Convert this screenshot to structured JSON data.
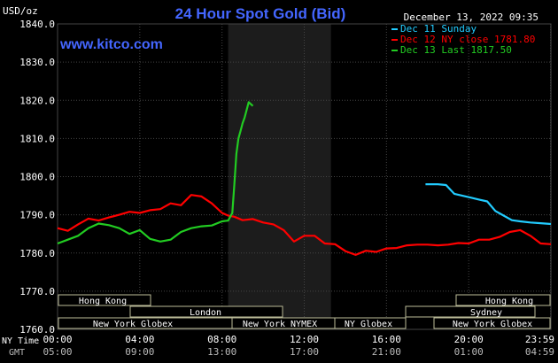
{
  "header": {
    "unit_label": "USD/oz",
    "title": "24 Hour Spot Gold (Bid)",
    "datetime": "December 13, 2022 09:35",
    "website": "www.kitco.com"
  },
  "legend": [
    {
      "label": "Dec 11 Sunday",
      "color": "#22ccff"
    },
    {
      "label": "Dec 12 NY close 1781.80",
      "color": "#ff0000"
    },
    {
      "label": "Dec 13 Last 1817.50",
      "color": "#22cc22"
    }
  ],
  "axis_rows": {
    "ny_time_label": "NY Time",
    "gmt_label": "GMT"
  },
  "markets": {
    "left": [
      "Hong Kong",
      "London",
      "New York Globex",
      "New York NYMEX",
      "NY Globex"
    ],
    "right": [
      "Hong Kong",
      "Sydney",
      "New York Globex"
    ]
  },
  "colors": {
    "background": "#000000",
    "plot_background": "#000000",
    "highlight_band": "#1c1c1c",
    "grid": "#444444",
    "title": "#4466ff",
    "text": "#ffffff",
    "box_fill": "#000000",
    "box_border": "#bbbb99",
    "axis_text": "#bbbbbb"
  },
  "chart_data": {
    "type": "line",
    "title": "24 Hour Spot Gold (Bid)",
    "ylabel": "USD/oz",
    "xlabel": "NY Time",
    "ylim": [
      1760,
      1840
    ],
    "yticks": [
      1840.0,
      1830.0,
      1820.0,
      1810.0,
      1800.0,
      1790.0,
      1780.0,
      1770.0,
      1760.0
    ],
    "ytick_labels": [
      "1840.0",
      "1830.0",
      "1820.0",
      "1810.0",
      "1800.0",
      "1790.0",
      "1780.0",
      "1770.0",
      "1760.0"
    ],
    "xlim_hours": [
      0,
      24
    ],
    "xticks_hours": [
      0,
      4,
      8,
      12,
      16,
      20,
      23.9833
    ],
    "xtick_labels_ny": [
      "00:00",
      "04:00",
      "08:00",
      "12:00",
      "16:00",
      "20:00",
      "23:59"
    ],
    "xtick_labels_gmt": [
      "05:00",
      "09:00",
      "13:00",
      "17:00",
      "21:00",
      "01:00",
      "04:59"
    ],
    "grid": true,
    "highlight_hours": [
      8.3,
      13.3
    ],
    "legend_position": "top-right",
    "series": [
      {
        "name": "Dec 11 Sunday",
        "color": "#22ccff",
        "x": [
          17.9,
          18.5,
          18.9,
          19.3,
          19.7,
          20.1,
          20.5,
          20.9,
          21.3,
          21.7,
          22.1,
          22.5,
          23.0,
          23.5,
          24.0
        ],
        "y": [
          1798.0,
          1798.0,
          1797.8,
          1795.5,
          1795.0,
          1794.5,
          1794.0,
          1793.5,
          1791.0,
          1789.8,
          1788.6,
          1788.3,
          1788.0,
          1787.8,
          1787.6
        ]
      },
      {
        "name": "Dec 12 NY close 1781.80",
        "color": "#ff0000",
        "x": [
          0.0,
          0.5,
          1.0,
          1.5,
          2.0,
          2.5,
          3.0,
          3.5,
          4.0,
          4.5,
          5.0,
          5.5,
          6.0,
          6.5,
          7.0,
          7.5,
          8.0,
          8.3,
          8.6,
          9.0,
          9.5,
          10.0,
          10.5,
          11.0,
          11.5,
          12.0,
          12.5,
          13.0,
          13.5,
          14.0,
          14.5,
          15.0,
          15.5,
          16.0,
          16.5,
          17.0,
          17.5,
          18.0,
          18.5,
          19.0,
          19.5,
          20.0,
          20.5,
          21.0,
          21.5,
          22.0,
          22.5,
          23.0,
          23.5,
          24.0
        ],
        "y": [
          1786.5,
          1785.8,
          1787.5,
          1789.0,
          1788.5,
          1789.3,
          1790.0,
          1790.8,
          1790.5,
          1791.2,
          1791.5,
          1793.0,
          1792.5,
          1795.2,
          1794.8,
          1793.0,
          1790.5,
          1789.8,
          1789.5,
          1788.6,
          1788.9,
          1788.0,
          1787.5,
          1786.0,
          1783.0,
          1784.5,
          1784.5,
          1782.5,
          1782.3,
          1780.5,
          1779.5,
          1780.6,
          1780.3,
          1781.2,
          1781.3,
          1782.0,
          1782.2,
          1782.2,
          1782.0,
          1782.2,
          1782.6,
          1782.5,
          1783.5,
          1783.5,
          1784.2,
          1785.5,
          1786.0,
          1784.5,
          1782.5,
          1782.3
        ]
      },
      {
        "name": "Dec 13 Last 1817.50",
        "color": "#22cc22",
        "x": [
          0.0,
          0.5,
          1.0,
          1.5,
          2.0,
          2.5,
          3.0,
          3.5,
          4.0,
          4.5,
          5.0,
          5.5,
          6.0,
          6.5,
          7.0,
          7.5,
          8.0,
          8.3,
          8.5,
          8.6,
          8.7,
          8.8,
          8.9,
          9.0,
          9.1,
          9.3,
          9.5
        ],
        "y": [
          1782.5,
          1783.5,
          1784.5,
          1786.5,
          1787.7,
          1787.3,
          1786.5,
          1785.0,
          1786.0,
          1783.7,
          1783.0,
          1783.5,
          1785.5,
          1786.5,
          1787.0,
          1787.2,
          1788.3,
          1788.5,
          1790.5,
          1798.0,
          1806.0,
          1810.0,
          1812.0,
          1814.0,
          1815.5,
          1819.5,
          1818.5
        ]
      }
    ]
  }
}
